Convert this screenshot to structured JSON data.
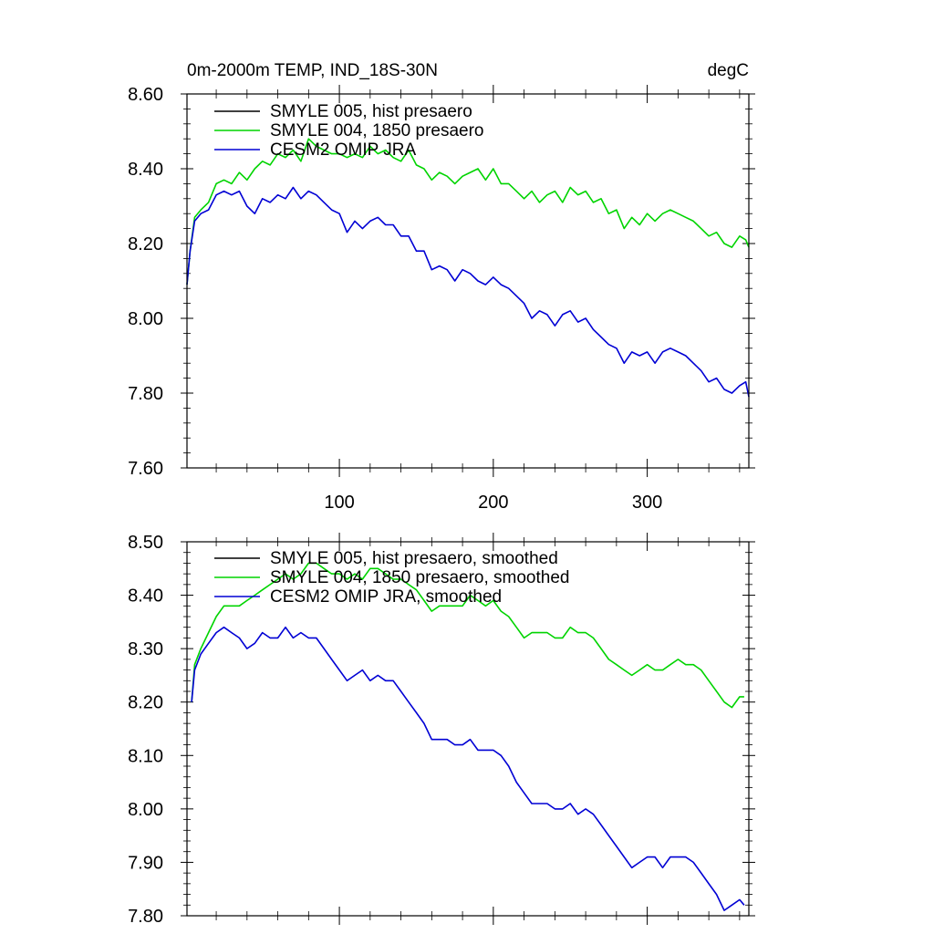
{
  "chart_data": [
    {
      "type": "line",
      "title_left": "0m-2000m TEMP, IND_18S-30N",
      "title_right": "degC",
      "xlim": [
        1,
        366
      ],
      "ylim": [
        7.6,
        8.6
      ],
      "x_ticks": [
        100,
        200,
        300
      ],
      "x_tick_labels": [
        "100",
        "200",
        "300"
      ],
      "y_ticks": [
        7.6,
        7.8,
        8.0,
        8.2,
        8.4,
        8.6
      ],
      "y_tick_labels": [
        "7.60",
        "7.80",
        "8.00",
        "8.20",
        "8.40",
        "8.60"
      ],
      "legend": [
        "SMYLE 005, hist presaero",
        "SMYLE 004, 1850 presaero",
        "CESM2 OMIP JRA"
      ],
      "series": [
        {
          "name": "SMYLE 005, hist presaero",
          "color": "#000000",
          "values": []
        },
        {
          "name": "SMYLE 004, 1850 presaero",
          "color": "#00d400",
          "x": [
            1,
            3,
            6,
            10,
            15,
            20,
            25,
            30,
            35,
            40,
            45,
            50,
            55,
            60,
            65,
            70,
            75,
            80,
            85,
            90,
            95,
            100,
            105,
            110,
            115,
            120,
            125,
            130,
            135,
            140,
            145,
            150,
            155,
            160,
            165,
            170,
            175,
            180,
            185,
            190,
            195,
            200,
            205,
            210,
            215,
            220,
            225,
            230,
            235,
            240,
            245,
            250,
            255,
            260,
            265,
            270,
            275,
            280,
            285,
            290,
            295,
            300,
            305,
            310,
            315,
            320,
            325,
            330,
            335,
            340,
            345,
            350,
            355,
            360,
            364,
            366
          ],
          "values": [
            8.09,
            8.18,
            8.27,
            8.29,
            8.31,
            8.36,
            8.37,
            8.36,
            8.39,
            8.37,
            8.4,
            8.42,
            8.41,
            8.44,
            8.43,
            8.45,
            8.42,
            8.48,
            8.46,
            8.45,
            8.44,
            8.44,
            8.43,
            8.44,
            8.43,
            8.46,
            8.44,
            8.45,
            8.43,
            8.42,
            8.45,
            8.41,
            8.4,
            8.37,
            8.39,
            8.38,
            8.36,
            8.38,
            8.39,
            8.4,
            8.37,
            8.4,
            8.36,
            8.36,
            8.34,
            8.32,
            8.34,
            8.31,
            8.33,
            8.34,
            8.31,
            8.35,
            8.33,
            8.34,
            8.31,
            8.32,
            8.28,
            8.29,
            8.24,
            8.27,
            8.25,
            8.28,
            8.26,
            8.28,
            8.29,
            8.28,
            8.27,
            8.26,
            8.24,
            8.22,
            8.23,
            8.2,
            8.19,
            8.22,
            8.21,
            8.19
          ]
        },
        {
          "name": "CESM2 OMIP JRA",
          "color": "#0000d4",
          "x": [
            1,
            3,
            6,
            10,
            15,
            20,
            25,
            30,
            35,
            40,
            45,
            50,
            55,
            60,
            65,
            70,
            75,
            80,
            85,
            90,
            95,
            100,
            105,
            110,
            115,
            120,
            125,
            130,
            135,
            140,
            145,
            150,
            155,
            160,
            165,
            170,
            175,
            180,
            185,
            190,
            195,
            200,
            205,
            210,
            215,
            220,
            225,
            230,
            235,
            240,
            245,
            250,
            255,
            260,
            265,
            270,
            275,
            280,
            285,
            290,
            295,
            300,
            305,
            310,
            315,
            320,
            325,
            330,
            335,
            340,
            345,
            350,
            355,
            360,
            364,
            366
          ],
          "values": [
            8.09,
            8.18,
            8.26,
            8.28,
            8.29,
            8.33,
            8.34,
            8.33,
            8.34,
            8.3,
            8.28,
            8.32,
            8.31,
            8.33,
            8.32,
            8.35,
            8.32,
            8.34,
            8.33,
            8.31,
            8.29,
            8.28,
            8.23,
            8.26,
            8.24,
            8.26,
            8.27,
            8.25,
            8.25,
            8.22,
            8.22,
            8.18,
            8.18,
            8.13,
            8.14,
            8.13,
            8.1,
            8.13,
            8.12,
            8.1,
            8.09,
            8.11,
            8.09,
            8.08,
            8.06,
            8.04,
            8.0,
            8.02,
            8.01,
            7.98,
            8.01,
            8.02,
            7.99,
            8.0,
            7.97,
            7.95,
            7.93,
            7.92,
            7.88,
            7.91,
            7.9,
            7.91,
            7.88,
            7.91,
            7.92,
            7.91,
            7.9,
            7.88,
            7.86,
            7.83,
            7.84,
            7.81,
            7.8,
            7.82,
            7.83,
            7.79
          ]
        }
      ]
    },
    {
      "type": "line",
      "xlim": [
        1,
        366
      ],
      "ylim": [
        7.8,
        8.5
      ],
      "x_ticks": [
        100,
        200,
        300
      ],
      "y_ticks": [
        7.8,
        7.9,
        8.0,
        8.1,
        8.2,
        8.3,
        8.4,
        8.5
      ],
      "y_tick_labels": [
        "7.80",
        "7.90",
        "8.00",
        "8.10",
        "8.20",
        "8.30",
        "8.40",
        "8.50"
      ],
      "legend": [
        "SMYLE 005, hist presaero, smoothed",
        "SMYLE 004, 1850 presaero, smoothed",
        "CESM2 OMIP JRA, smoothed"
      ],
      "series": [
        {
          "name": "SMYLE 005, hist presaero, smoothed",
          "color": "#000000",
          "values": []
        },
        {
          "name": "SMYLE 004, 1850 presaero, smoothed",
          "color": "#00d400",
          "x": [
            4,
            6,
            10,
            15,
            20,
            25,
            30,
            35,
            40,
            45,
            50,
            55,
            60,
            65,
            70,
            75,
            80,
            85,
            90,
            95,
            100,
            105,
            110,
            115,
            120,
            125,
            130,
            135,
            140,
            145,
            150,
            155,
            160,
            165,
            170,
            175,
            180,
            185,
            190,
            195,
            200,
            205,
            210,
            215,
            220,
            225,
            230,
            235,
            240,
            245,
            250,
            255,
            260,
            265,
            270,
            275,
            280,
            285,
            290,
            295,
            300,
            305,
            310,
            315,
            320,
            325,
            330,
            335,
            340,
            345,
            350,
            355,
            360,
            363
          ],
          "values": [
            8.2,
            8.27,
            8.3,
            8.33,
            8.36,
            8.38,
            8.38,
            8.38,
            8.39,
            8.4,
            8.41,
            8.42,
            8.43,
            8.44,
            8.43,
            8.44,
            8.46,
            8.46,
            8.45,
            8.44,
            8.44,
            8.43,
            8.44,
            8.43,
            8.45,
            8.45,
            8.44,
            8.43,
            8.43,
            8.42,
            8.41,
            8.39,
            8.37,
            8.38,
            8.38,
            8.38,
            8.38,
            8.4,
            8.39,
            8.38,
            8.39,
            8.37,
            8.36,
            8.34,
            8.32,
            8.33,
            8.33,
            8.33,
            8.32,
            8.32,
            8.34,
            8.33,
            8.33,
            8.32,
            8.3,
            8.28,
            8.27,
            8.26,
            8.25,
            8.26,
            8.27,
            8.26,
            8.26,
            8.27,
            8.28,
            8.27,
            8.27,
            8.26,
            8.24,
            8.22,
            8.2,
            8.19,
            8.21,
            8.21
          ]
        },
        {
          "name": "CESM2 OMIP JRA, smoothed",
          "color": "#0000d4",
          "x": [
            4,
            6,
            10,
            15,
            20,
            25,
            30,
            35,
            40,
            45,
            50,
            55,
            60,
            65,
            70,
            75,
            80,
            85,
            90,
            95,
            100,
            105,
            110,
            115,
            120,
            125,
            130,
            135,
            140,
            145,
            150,
            155,
            160,
            165,
            170,
            175,
            180,
            185,
            190,
            195,
            200,
            205,
            210,
            215,
            220,
            225,
            230,
            235,
            240,
            245,
            250,
            255,
            260,
            265,
            270,
            275,
            280,
            285,
            290,
            295,
            300,
            305,
            310,
            315,
            320,
            325,
            330,
            335,
            340,
            345,
            350,
            355,
            360,
            363
          ],
          "values": [
            8.2,
            8.26,
            8.29,
            8.31,
            8.33,
            8.34,
            8.33,
            8.32,
            8.3,
            8.31,
            8.33,
            8.32,
            8.32,
            8.34,
            8.32,
            8.33,
            8.32,
            8.32,
            8.3,
            8.28,
            8.26,
            8.24,
            8.25,
            8.26,
            8.24,
            8.25,
            8.24,
            8.24,
            8.22,
            8.2,
            8.18,
            8.16,
            8.13,
            8.13,
            8.13,
            8.12,
            8.12,
            8.13,
            8.11,
            8.11,
            8.11,
            8.1,
            8.08,
            8.05,
            8.03,
            8.01,
            8.01,
            8.01,
            8.0,
            8.0,
            8.01,
            7.99,
            8.0,
            7.99,
            7.97,
            7.95,
            7.93,
            7.91,
            7.89,
            7.9,
            7.91,
            7.91,
            7.89,
            7.91,
            7.91,
            7.91,
            7.9,
            7.88,
            7.86,
            7.84,
            7.81,
            7.82,
            7.83,
            7.82
          ]
        }
      ]
    }
  ]
}
